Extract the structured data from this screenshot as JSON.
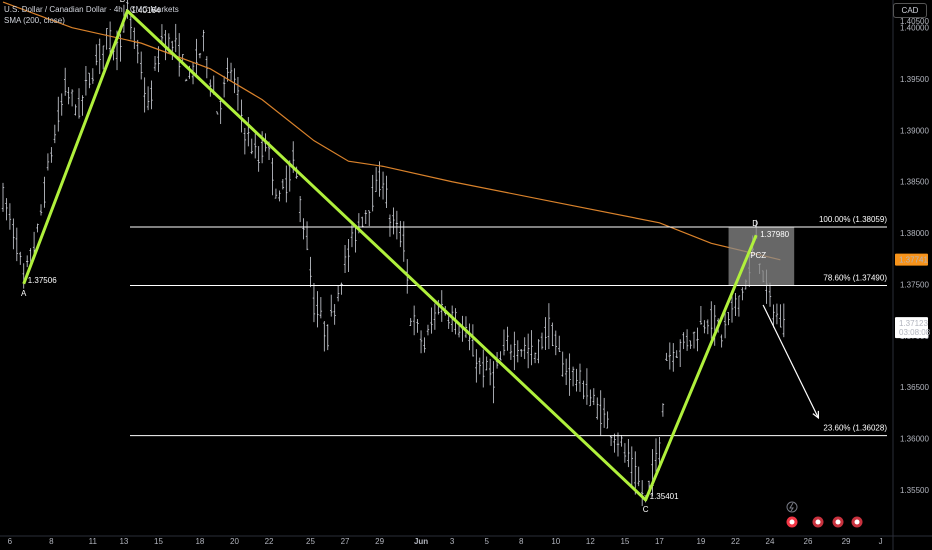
{
  "header": {
    "title": "U.S. Dollar / Canadian Dollar · 4h · CMC Markets",
    "indicator": "SMA (200, close)",
    "currency": "CAD"
  },
  "colors": {
    "background": "#000000",
    "candle": "#d1d4dc",
    "pattern": "#b0f03c",
    "sma": "#d9822b",
    "fib_line": "#ffffff",
    "price_tag_sma": "#f7931a",
    "price_tag_last": "#ffffff",
    "pcz_box": "#8a8a8a"
  },
  "chart_data": {
    "type": "candlestick",
    "title": "U.S. Dollar / Canadian Dollar · 4h · CMC Markets",
    "ylim": [
      1.3505,
      1.4027
    ],
    "y_ticks": [
      "1.40000",
      "1.39500",
      "1.39000",
      "1.38500",
      "1.38000",
      "1.37500",
      "1.37000",
      "1.36500",
      "1.36000",
      "1.35500"
    ],
    "y_tick_values": [
      1.4,
      1.395,
      1.39,
      1.385,
      1.38,
      1.375,
      1.37,
      1.365,
      1.36,
      1.355
    ],
    "x_ticks": [
      "6",
      "8",
      "11",
      "13",
      "15",
      "18",
      "20",
      "22",
      "25",
      "27",
      "29",
      "Jun",
      "3",
      "5",
      "8",
      "10",
      "12",
      "15",
      "17",
      "19",
      "22",
      "24",
      "26",
      "29",
      "J"
    ],
    "x_tick_index": [
      2,
      14,
      26,
      35,
      45,
      57,
      67,
      77,
      89,
      99,
      109,
      121,
      130,
      140,
      150,
      160,
      170,
      180,
      190,
      202,
      212,
      222,
      233,
      244,
      254
    ],
    "price_axis_max_label": "1.40500",
    "n_bars": 227,
    "harmonic_pattern": {
      "points": [
        {
          "label": "A",
          "index": 6,
          "price": 1.37506,
          "price_label": "1.37506"
        },
        {
          "label": "B",
          "index": 36,
          "price": 1.40164,
          "price_label": "1.40164"
        },
        {
          "label": "C",
          "index": 186,
          "price": 1.35401,
          "price_label": "1.35401"
        },
        {
          "label": "D",
          "index": 218,
          "price": 1.3798,
          "price_label": "1.37980"
        }
      ]
    },
    "fibonacci_levels": [
      {
        "label": "100.00% (1.38059)",
        "price": 1.38059
      },
      {
        "label": "78.60% (1.37490)",
        "price": 1.3749
      },
      {
        "label": "23.60% (1.36028)",
        "price": 1.36028
      }
    ],
    "pcz": {
      "label": "PCZ",
      "price_top": 1.38059,
      "price_bottom": 1.3749
    },
    "sma_200": [
      [
        0,
        1.4025
      ],
      [
        20,
        1.4
      ],
      [
        40,
        1.3985
      ],
      [
        60,
        1.396
      ],
      [
        75,
        1.393
      ],
      [
        90,
        1.389
      ],
      [
        100,
        1.387
      ],
      [
        110,
        1.3865
      ],
      [
        130,
        1.385
      ],
      [
        160,
        1.383
      ],
      [
        190,
        1.381
      ],
      [
        205,
        1.379
      ],
      [
        225,
        1.3774
      ]
    ],
    "price_path": [
      [
        0,
        1.3835
      ],
      [
        4,
        1.379
      ],
      [
        6,
        1.3751
      ],
      [
        10,
        1.38
      ],
      [
        14,
        1.388
      ],
      [
        18,
        1.394
      ],
      [
        22,
        1.392
      ],
      [
        26,
        1.396
      ],
      [
        30,
        1.399
      ],
      [
        33,
        1.398
      ],
      [
        36,
        1.4016
      ],
      [
        40,
        1.396
      ],
      [
        42,
        1.392
      ],
      [
        46,
        1.399
      ],
      [
        50,
        1.398
      ],
      [
        54,
        1.395
      ],
      [
        58,
        1.3985
      ],
      [
        62,
        1.392
      ],
      [
        66,
        1.396
      ],
      [
        70,
        1.39
      ],
      [
        74,
        1.387
      ],
      [
        76,
        1.389
      ],
      [
        80,
        1.383
      ],
      [
        84,
        1.387
      ],
      [
        88,
        1.379
      ],
      [
        90,
        1.373
      ],
      [
        94,
        1.37
      ],
      [
        98,
        1.376
      ],
      [
        102,
        1.38
      ],
      [
        106,
        1.383
      ],
      [
        110,
        1.3855
      ],
      [
        112,
        1.3815
      ],
      [
        116,
        1.379
      ],
      [
        118,
        1.372
      ],
      [
        122,
        1.369
      ],
      [
        126,
        1.373
      ],
      [
        130,
        1.372
      ],
      [
        134,
        1.37
      ],
      [
        138,
        1.367
      ],
      [
        142,
        1.366
      ],
      [
        146,
        1.369
      ],
      [
        150,
        1.369
      ],
      [
        154,
        1.368
      ],
      [
        158,
        1.371
      ],
      [
        162,
        1.367
      ],
      [
        166,
        1.366
      ],
      [
        170,
        1.364
      ],
      [
        174,
        1.362
      ],
      [
        178,
        1.36
      ],
      [
        182,
        1.357
      ],
      [
        186,
        1.354
      ],
      [
        190,
        1.359
      ],
      [
        192,
        1.368
      ],
      [
        196,
        1.369
      ],
      [
        200,
        1.37
      ],
      [
        204,
        1.372
      ],
      [
        208,
        1.37
      ],
      [
        212,
        1.373
      ],
      [
        216,
        1.376
      ],
      [
        218,
        1.3798
      ],
      [
        221,
        1.374
      ],
      [
        225,
        1.3712
      ]
    ],
    "projection_arrow": {
      "from_price": 1.373,
      "to_price": 1.362
    },
    "price_tags": [
      {
        "label": "1.37741",
        "price": 1.37741,
        "kind": "sma"
      },
      {
        "label": "1.37123",
        "price": 1.37123,
        "kind": "last"
      }
    ],
    "countdown": "03:08:08"
  }
}
